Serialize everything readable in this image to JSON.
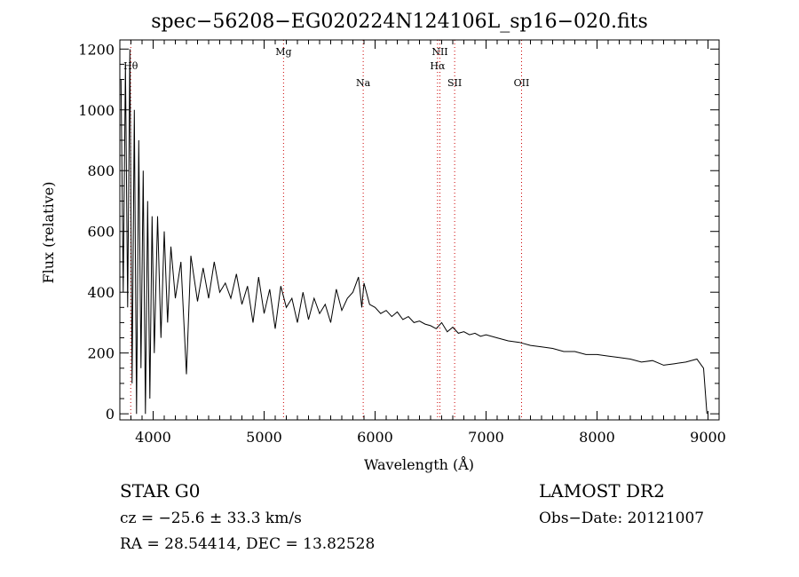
{
  "chart_data": {
    "type": "line",
    "title": "spec−56208−EG020224N124106L_sp16−020.fits",
    "xlabel": "Wavelength (Å)",
    "ylabel": "Flux (relative)",
    "xlim": [
      3700,
      9100
    ],
    "ylim": [
      -20,
      1230
    ],
    "xticks": [
      4000,
      5000,
      6000,
      7000,
      8000,
      9000
    ],
    "yticks": [
      0,
      200,
      400,
      600,
      800,
      1000,
      1200
    ],
    "grid": false,
    "line_color": "#000000",
    "marker_color": "#cc0000",
    "series": [
      {
        "x": [
          3710,
          3730,
          3750,
          3770,
          3790,
          3810,
          3830,
          3850,
          3870,
          3890,
          3910,
          3930,
          3950,
          3970,
          3990,
          4010,
          4040,
          4070,
          4100,
          4130,
          4160,
          4200,
          4250,
          4300,
          4340,
          4400,
          4450,
          4500,
          4550,
          4600,
          4650,
          4700,
          4750,
          4800,
          4850,
          4900,
          4950,
          5000,
          5050,
          5100,
          5150,
          5200,
          5250,
          5300,
          5350,
          5400,
          5450,
          5500,
          5550,
          5600,
          5650,
          5700,
          5750,
          5800,
          5850,
          5880,
          5900,
          5950,
          6000,
          6050,
          6100,
          6150,
          6200,
          6250,
          6300,
          6350,
          6400,
          6450,
          6500,
          6550,
          6600,
          6650,
          6700,
          6750,
          6800,
          6850,
          6900,
          6950,
          7000,
          7100,
          7200,
          7300,
          7400,
          7500,
          7600,
          7700,
          7800,
          7900,
          8000,
          8100,
          8200,
          8300,
          8400,
          8500,
          8600,
          8700,
          8800,
          8900,
          8960,
          8990
        ],
        "y": [
          1100,
          400,
          1150,
          350,
          1200,
          100,
          1000,
          0,
          900,
          150,
          800,
          0,
          700,
          50,
          650,
          200,
          650,
          250,
          600,
          300,
          550,
          380,
          500,
          130,
          520,
          370,
          480,
          380,
          500,
          400,
          430,
          380,
          460,
          360,
          420,
          300,
          450,
          330,
          410,
          280,
          420,
          350,
          380,
          300,
          400,
          310,
          380,
          330,
          360,
          300,
          410,
          340,
          380,
          400,
          450,
          350,
          430,
          360,
          350,
          330,
          340,
          320,
          335,
          310,
          320,
          300,
          305,
          295,
          290,
          280,
          300,
          270,
          285,
          265,
          270,
          260,
          265,
          255,
          260,
          250,
          240,
          235,
          225,
          220,
          215,
          205,
          205,
          195,
          195,
          190,
          185,
          180,
          170,
          175,
          160,
          165,
          170,
          180,
          150,
          0
        ]
      }
    ],
    "line_markers": [
      {
        "label": "Hθ",
        "x": 3798,
        "row": 1
      },
      {
        "label": "Mg",
        "x": 5175,
        "row": 0
      },
      {
        "label": "Na",
        "x": 5893,
        "row": 2
      },
      {
        "label": "NII",
        "x": 6584,
        "row": 0
      },
      {
        "label": "Hα",
        "x": 6563,
        "row": 1
      },
      {
        "label": "SII",
        "x": 6717,
        "row": 2
      },
      {
        "label": "OII",
        "x": 7320,
        "row": 2
      }
    ]
  },
  "info": {
    "star_type": "STAR    G0",
    "survey": "LAMOST DR2",
    "cz": "cz = −25.6 ± 33.3 km/s",
    "obs_date": "Obs−Date: 20121007",
    "ra_dec": "RA =  28.54414, DEC =  13.82528"
  }
}
